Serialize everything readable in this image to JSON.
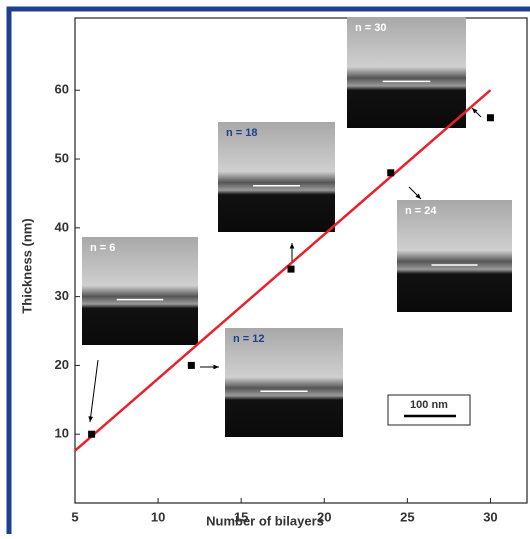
{
  "chart_data": {
    "type": "scatter",
    "x_label": "Number of bilayers",
    "y_label": "Thickness (nm)",
    "x": [
      6,
      12,
      18,
      24,
      30
    ],
    "values": [
      10,
      20,
      34,
      48,
      56
    ],
    "color": "#000000",
    "fit": {
      "x": [
        5,
        30
      ],
      "values": [
        7.6,
        60
      ],
      "color": "#e8212a"
    },
    "xlim": [
      5,
      32.2
    ],
    "ylim": [
      0,
      70.5
    ],
    "xticks": [
      5,
      10,
      15,
      20,
      25,
      30
    ],
    "yticks": [
      10,
      20,
      30,
      40,
      50,
      60
    ],
    "annotations": [
      "n = 6",
      "n = 12",
      "n = 18",
      "n = 24",
      "n = 30",
      "100 nm"
    ]
  }
}
